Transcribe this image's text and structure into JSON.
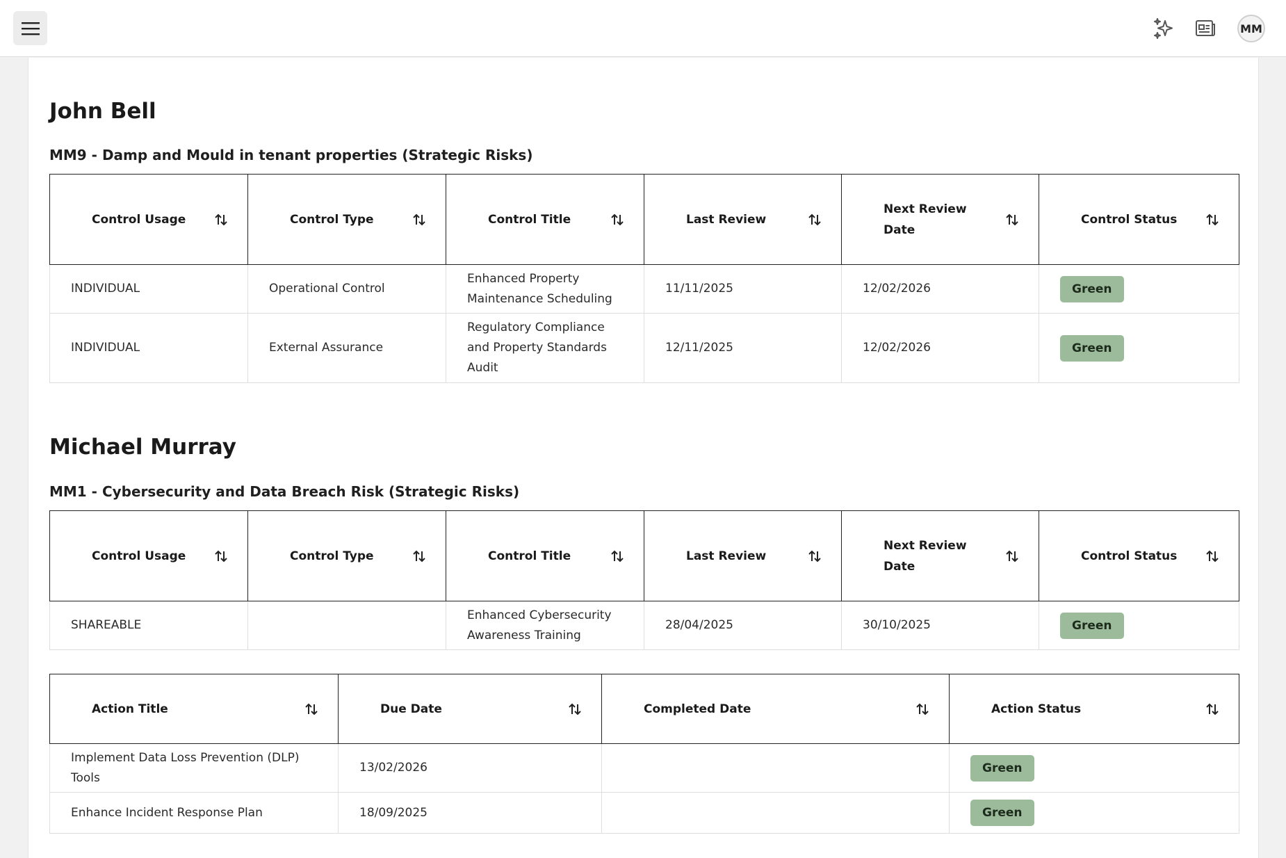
{
  "header": {
    "menu_icon": "hamburger-menu-icon",
    "icons": [
      "sparkles-icon",
      "news-icon"
    ],
    "avatar_initials": "MM"
  },
  "sections": [
    {
      "person": "John Bell",
      "risk": "MM9 - Damp and Mould in tenant properties (Strategic Risks)",
      "controls": {
        "headers": [
          "Control Usage",
          "Control Type",
          "Control Title",
          "Last Review",
          "Next Review Date",
          "Control Status"
        ],
        "rows": [
          [
            "INDIVIDUAL",
            "Operational Control",
            "Enhanced Property Maintenance Scheduling",
            "11/11/2025",
            "12/02/2026",
            "Green"
          ],
          [
            "INDIVIDUAL",
            "External Assurance",
            "Regulatory Compliance and Property Standards Audit",
            "12/11/2025",
            "12/02/2026",
            "Green"
          ]
        ]
      }
    },
    {
      "person": "Michael Murray",
      "risk": "MM1 - Cybersecurity and Data Breach Risk (Strategic Risks)",
      "controls": {
        "headers": [
          "Control Usage",
          "Control Type",
          "Control Title",
          "Last Review",
          "Next Review Date",
          "Control Status"
        ],
        "rows": [
          [
            "SHAREABLE",
            "",
            "Enhanced Cybersecurity Awareness Training",
            "28/04/2025",
            "30/10/2025",
            "Green"
          ]
        ]
      },
      "actions": {
        "headers": [
          "Action Title",
          "Due Date",
          "Completed Date",
          "Action Status"
        ],
        "rows": [
          [
            "Implement Data Loss Prevention (DLP) Tools",
            "13/02/2026",
            "",
            "Green"
          ],
          [
            "Enhance Incident Response Plan",
            "18/09/2025",
            "",
            "Green"
          ]
        ]
      }
    }
  ],
  "colors": {
    "status_green_bg": "#9cbb9a",
    "page_bg": "#f1f1f1",
    "border_dark": "#222222"
  }
}
